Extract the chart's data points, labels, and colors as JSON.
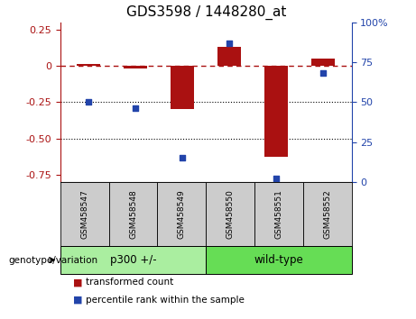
{
  "title": "GDS3598 / 1448280_at",
  "samples": [
    "GSM458547",
    "GSM458548",
    "GSM458549",
    "GSM458550",
    "GSM458551",
    "GSM458552"
  ],
  "transformed_count": [
    0.01,
    -0.02,
    -0.3,
    0.13,
    -0.63,
    0.05
  ],
  "percentile_rank": [
    50,
    46,
    15,
    87,
    2,
    68
  ],
  "ylim_left": [
    -0.8,
    0.3
  ],
  "ylim_right": [
    0,
    100
  ],
  "yticks_left": [
    0.25,
    0.0,
    -0.25,
    -0.5,
    -0.75
  ],
  "yticks_right": [
    100,
    75,
    50,
    25,
    0
  ],
  "hlines": [
    -0.25,
    -0.5
  ],
  "dashed_hline": 0.0,
  "bar_color": "#AA1111",
  "scatter_color": "#2244AA",
  "bar_width": 0.5,
  "groups": [
    {
      "label": "p300 +/-",
      "indices": [
        0,
        1,
        2
      ],
      "color": "#AAEEA0"
    },
    {
      "label": "wild-type",
      "indices": [
        3,
        4,
        5
      ],
      "color": "#66DD55"
    }
  ],
  "group_label": "genotype/variation",
  "legend_bar_label": "transformed count",
  "legend_scatter_label": "percentile rank within the sample",
  "plot_bg": "#FFFFFF",
  "title_fontsize": 11,
  "sample_box_color": "#CCCCCC",
  "group_box_border": "#000000"
}
